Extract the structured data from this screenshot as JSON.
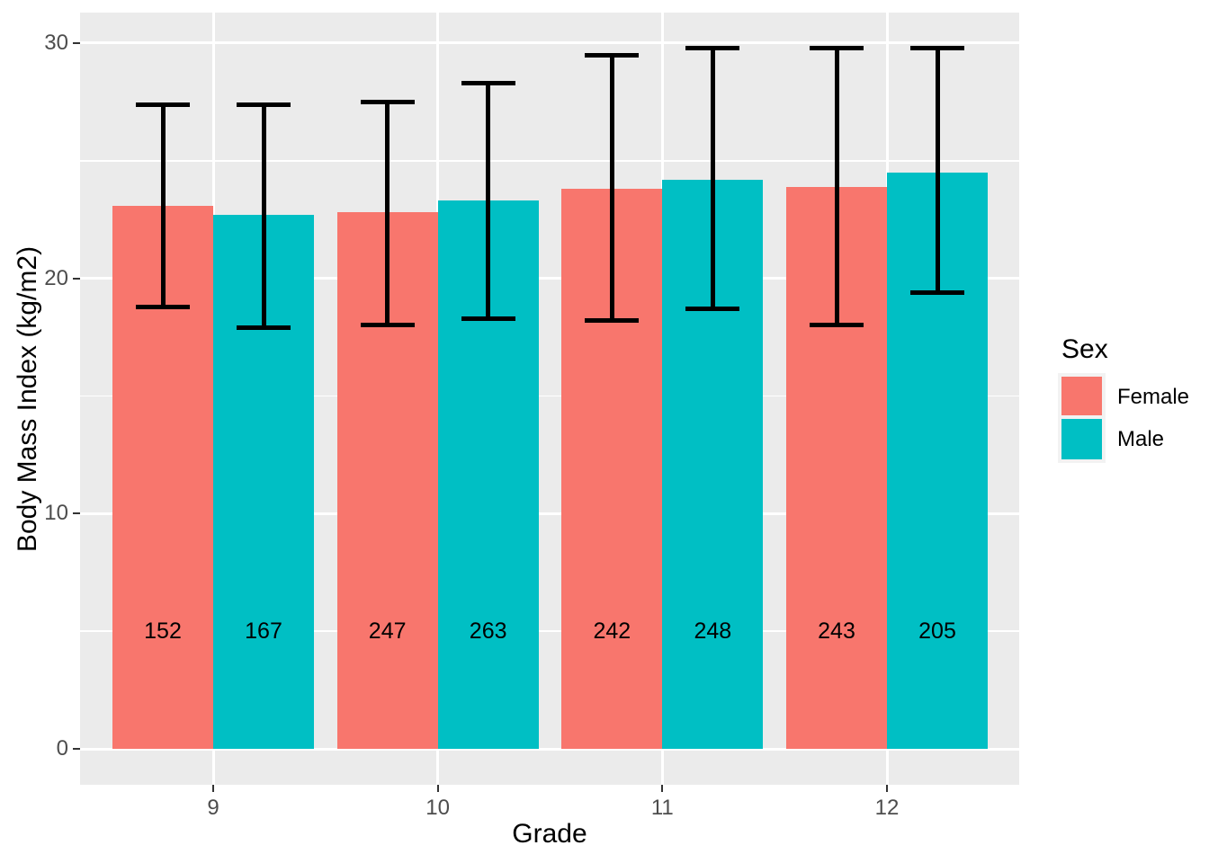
{
  "figure": {
    "background": "#FFFFFF",
    "panel_background": "#EBEBEB",
    "gridline_color": "#FFFFFF",
    "tick_mark_color": "#333333",
    "tick_label_color": "#4D4D4D",
    "errorbar_color": "#000000"
  },
  "chart_data": {
    "type": "bar",
    "title": "",
    "xlabel": "Grade",
    "ylabel": "Body Mass Index (kg/m2)",
    "categories": [
      "9",
      "10",
      "11",
      "12"
    ],
    "series": [
      {
        "name": "Female",
        "color": "#F8766D",
        "values": [
          23.1,
          22.8,
          23.8,
          23.9
        ],
        "error_low": [
          18.8,
          18.0,
          18.2,
          18.0
        ],
        "error_high": [
          27.4,
          27.5,
          29.5,
          29.8
        ],
        "bar_labels": [
          "152",
          "247",
          "242",
          "243"
        ]
      },
      {
        "name": "Male",
        "color": "#00BFC4",
        "values": [
          22.7,
          23.3,
          24.2,
          24.5
        ],
        "error_low": [
          17.9,
          18.3,
          18.7,
          19.4
        ],
        "error_high": [
          27.4,
          28.3,
          29.8,
          29.8
        ],
        "bar_labels": [
          "167",
          "263",
          "248",
          "205"
        ]
      }
    ],
    "yticks": [
      0,
      10,
      20,
      30
    ],
    "ytick_labels": [
      "0",
      "10",
      "20",
      "30"
    ],
    "yticks_minor": [
      5,
      15,
      25
    ],
    "ylim": [
      -1.5,
      31.3
    ],
    "bar_label_y": 5,
    "grid": true,
    "legend_position": "right"
  },
  "legend": {
    "title": "Sex",
    "items": [
      {
        "label": "Female",
        "color": "#F8766D"
      },
      {
        "label": "Male",
        "color": "#00BFC4"
      }
    ]
  }
}
